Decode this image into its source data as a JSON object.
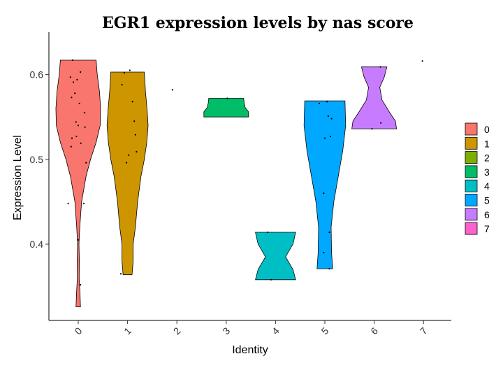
{
  "chart_data": {
    "type": "violin",
    "title": "EGR1 expression levels by nas score",
    "xlabel": "Identity",
    "ylabel": "Expression Level",
    "categories": [
      "0",
      "1",
      "2",
      "3",
      "4",
      "5",
      "6",
      "7"
    ],
    "ylim": [
      0.31,
      0.65
    ],
    "yticks": [
      0.4,
      0.5,
      0.6
    ],
    "ytick_labels": [
      "0.4",
      "0.5",
      "0.6"
    ],
    "grid": false,
    "legend_position": "right",
    "legend": {
      "title": "",
      "entries": [
        "0",
        "1",
        "2",
        "3",
        "4",
        "5",
        "6",
        "7"
      ]
    },
    "colors": {
      "0": "#F8766D",
      "1": "#CD9600",
      "2": "#7CAE00",
      "3": "#00BE67",
      "4": "#00BFC4",
      "5": "#00A9FF",
      "6": "#C77CFF",
      "7": "#FF61CC"
    },
    "violins": [
      {
        "category": "0",
        "min": 0.326,
        "max": 0.617,
        "profile": [
          [
            0.326,
            0.1
          ],
          [
            0.34,
            0.08
          ],
          [
            0.36,
            0.04
          ],
          [
            0.38,
            0.05
          ],
          [
            0.4,
            0.03
          ],
          [
            0.42,
            0.07
          ],
          [
            0.45,
            0.15
          ],
          [
            0.48,
            0.35
          ],
          [
            0.5,
            0.55
          ],
          [
            0.52,
            0.8
          ],
          [
            0.54,
            0.98
          ],
          [
            0.56,
            1.0
          ],
          [
            0.58,
            0.95
          ],
          [
            0.6,
            0.85
          ],
          [
            0.617,
            0.8
          ]
        ]
      },
      {
        "category": "1",
        "min": 0.364,
        "max": 0.603,
        "profile": [
          [
            0.364,
            0.2
          ],
          [
            0.38,
            0.25
          ],
          [
            0.4,
            0.25
          ],
          [
            0.42,
            0.35
          ],
          [
            0.45,
            0.45
          ],
          [
            0.48,
            0.6
          ],
          [
            0.5,
            0.75
          ],
          [
            0.52,
            0.86
          ],
          [
            0.54,
            0.92
          ],
          [
            0.56,
            0.87
          ],
          [
            0.58,
            0.8
          ],
          [
            0.603,
            0.75
          ]
        ]
      },
      {
        "category": "2",
        "points_only": true,
        "points": [
          0.582
        ]
      },
      {
        "category": "3",
        "min": 0.55,
        "max": 0.572,
        "profile": [
          [
            0.55,
            1.0
          ],
          [
            0.556,
            1.0
          ],
          [
            0.561,
            0.85
          ],
          [
            0.567,
            0.8
          ],
          [
            0.572,
            0.78
          ]
        ]
      },
      {
        "category": "4",
        "min": 0.358,
        "max": 0.414,
        "profile": [
          [
            0.358,
            0.9
          ],
          [
            0.37,
            0.78
          ],
          [
            0.385,
            0.45
          ],
          [
            0.4,
            0.78
          ],
          [
            0.414,
            0.9
          ]
        ]
      },
      {
        "category": "5",
        "min": 0.371,
        "max": 0.569,
        "profile": [
          [
            0.371,
            0.35
          ],
          [
            0.39,
            0.3
          ],
          [
            0.42,
            0.28
          ],
          [
            0.45,
            0.4
          ],
          [
            0.48,
            0.6
          ],
          [
            0.51,
            0.8
          ],
          [
            0.54,
            0.93
          ],
          [
            0.569,
            0.9
          ]
        ]
      },
      {
        "category": "6",
        "min": 0.536,
        "max": 0.609,
        "profile": [
          [
            0.536,
            1.0
          ],
          [
            0.545,
            0.95
          ],
          [
            0.555,
            0.7
          ],
          [
            0.57,
            0.35
          ],
          [
            0.585,
            0.25
          ],
          [
            0.597,
            0.45
          ],
          [
            0.609,
            0.57
          ]
        ]
      },
      {
        "category": "7",
        "points_only": true,
        "points": [
          0.616
        ]
      }
    ],
    "points": {
      "0": [
        [
          -0.25,
          0.617
        ],
        [
          -0.35,
          0.597
        ],
        [
          -0.22,
          0.591
        ],
        [
          -0.05,
          0.594
        ],
        [
          0.1,
          0.603
        ],
        [
          0.05,
          0.566
        ],
        [
          -0.3,
          0.573
        ],
        [
          -0.15,
          0.578
        ],
        [
          0.28,
          0.555
        ],
        [
          0.3,
          0.538
        ],
        [
          -0.1,
          0.544
        ],
        [
          0.0,
          0.54
        ],
        [
          -0.28,
          0.525
        ],
        [
          -0.08,
          0.527
        ],
        [
          0.12,
          0.519
        ],
        [
          -0.32,
          0.515
        ],
        [
          0.35,
          0.496
        ],
        [
          -0.45,
          0.448
        ],
        [
          0.25,
          0.448
        ],
        [
          0.0,
          0.405
        ],
        [
          0.1,
          0.352
        ]
      ],
      "1": [
        [
          -0.15,
          0.602
        ],
        [
          0.1,
          0.605
        ],
        [
          -0.25,
          0.588
        ],
        [
          0.22,
          0.568
        ],
        [
          0.3,
          0.545
        ],
        [
          0.35,
          0.529
        ],
        [
          0.05,
          0.505
        ],
        [
          0.4,
          0.509
        ],
        [
          -0.05,
          0.496
        ],
        [
          -0.3,
          0.365
        ]
      ],
      "2": [
        [
          -0.2,
          0.582
        ]
      ],
      "3": [
        [
          0.05,
          0.572
        ]
      ],
      "4": [
        [
          -0.35,
          0.414
        ],
        [
          -0.2,
          0.358
        ]
      ],
      "5": [
        [
          -0.25,
          0.566
        ],
        [
          0.1,
          0.568
        ],
        [
          0.15,
          0.551
        ],
        [
          0.3,
          0.548
        ],
        [
          0.0,
          0.525
        ],
        [
          0.25,
          0.527
        ],
        [
          -0.05,
          0.46
        ],
        [
          0.2,
          0.414
        ],
        [
          -0.05,
          0.39
        ],
        [
          0.2,
          0.371
        ]
      ],
      "6": [
        [
          0.28,
          0.609
        ],
        [
          0.3,
          0.543
        ],
        [
          -0.1,
          0.536
        ]
      ],
      "7": [
        [
          -0.05,
          0.616
        ]
      ]
    }
  }
}
